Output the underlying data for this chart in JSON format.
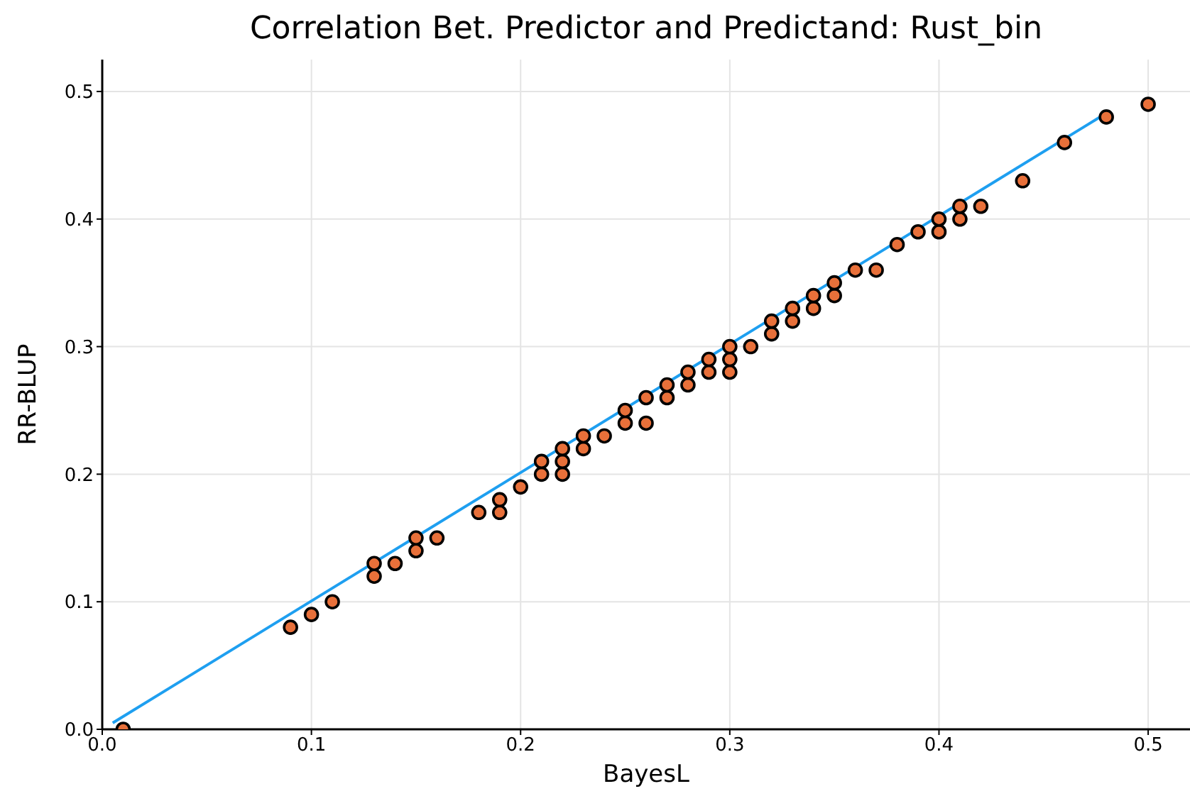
{
  "chart_data": {
    "type": "scatter",
    "title": "Correlation Bet. Predictor and Predictand: Rust_bin",
    "xlabel": "BayesL",
    "ylabel": "RR-BLUP",
    "xlim": [
      0,
      0.52
    ],
    "ylim": [
      0,
      0.525
    ],
    "xticks": [
      {
        "value": 0,
        "label": "0.0"
      },
      0.1,
      0.2,
      0.3,
      0.4,
      0.5
    ],
    "yticks": [
      {
        "value": 0,
        "label": "0.0"
      },
      0.1,
      0.2,
      0.3,
      0.4,
      0.5
    ],
    "grid": true,
    "series": [
      {
        "marker": "circle",
        "color": "#e8703a",
        "x": [
          0.01,
          0.09,
          0.1,
          0.11,
          0.13,
          0.13,
          0.14,
          0.15,
          0.15,
          0.16,
          0.18,
          0.19,
          0.19,
          0.2,
          0.21,
          0.21,
          0.22,
          0.22,
          0.22,
          0.23,
          0.23,
          0.24,
          0.25,
          0.25,
          0.26,
          0.26,
          0.27,
          0.27,
          0.28,
          0.28,
          0.29,
          0.29,
          0.3,
          0.3,
          0.3,
          0.31,
          0.32,
          0.32,
          0.33,
          0.33,
          0.34,
          0.34,
          0.35,
          0.35,
          0.36,
          0.37,
          0.38,
          0.39,
          0.4,
          0.4,
          0.41,
          0.41,
          0.42,
          0.44,
          0.46,
          0.48,
          0.5
        ],
        "values": [
          0,
          0.08,
          0.09,
          0.1,
          0.12,
          0.13,
          0.13,
          0.14,
          0.15,
          0.15,
          0.17,
          0.17,
          0.18,
          0.19,
          0.2,
          0.21,
          0.2,
          0.21,
          0.22,
          0.22,
          0.23,
          0.23,
          0.24,
          0.25,
          0.24,
          0.26,
          0.26,
          0.27,
          0.27,
          0.28,
          0.28,
          0.29,
          0.28,
          0.29,
          0.3,
          0.3,
          0.31,
          0.32,
          0.32,
          0.33,
          0.33,
          0.34,
          0.34,
          0.35,
          0.36,
          0.36,
          0.38,
          0.39,
          0.39,
          0.4,
          0.4,
          0.41,
          0.41,
          0.43,
          0.46,
          0.48,
          0.49
        ]
      },
      {
        "type": "line",
        "color": "#1e9ff0",
        "x": [
          0.005,
          0.48
        ],
        "values": [
          0.005,
          0.483
        ],
        "line_style": "solid"
      }
    ]
  }
}
